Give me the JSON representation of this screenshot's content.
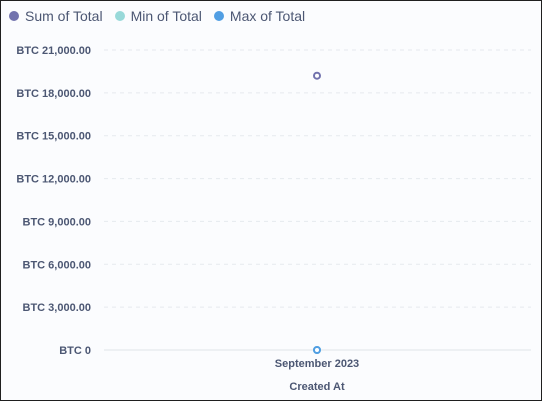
{
  "chart_data": {
    "type": "scatter",
    "title": "",
    "xlabel": "Created At",
    "ylabel": "",
    "categories": [
      "September 2023"
    ],
    "y_ticks": [
      "BTC 0",
      "BTC 3,000.00",
      "BTC 6,000.00",
      "BTC 9,000.00",
      "BTC 12,000.00",
      "BTC 15,000.00",
      "BTC 18,000.00",
      "BTC 21,000.00"
    ],
    "ylim": [
      0,
      21000
    ],
    "grid": true,
    "legend_position": "top-left",
    "series": [
      {
        "name": "Sum of Total",
        "color": "#7172ad",
        "values": [
          19200
        ]
      },
      {
        "name": "Min of Total",
        "color": "#98d9d9",
        "values": [
          0
        ]
      },
      {
        "name": "Max of Total",
        "color": "#509ee3",
        "values": [
          0
        ]
      }
    ]
  }
}
